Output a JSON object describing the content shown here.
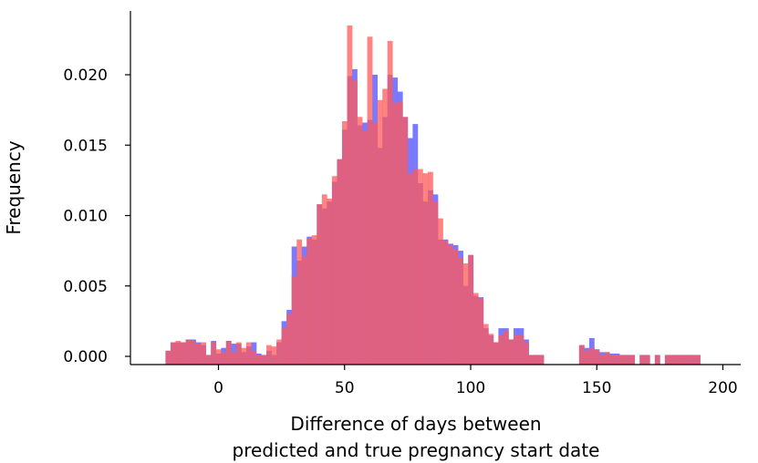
{
  "chart_data": {
    "type": "bar",
    "title": "",
    "xlabel_lines": [
      "Difference of days between",
      "predicted and true pregnancy start date"
    ],
    "ylabel": "Frequency",
    "xlim": [
      -35,
      205
    ],
    "ylim": [
      -0.0005,
      0.024
    ],
    "x_ticks": [
      0,
      50,
      100,
      150,
      200
    ],
    "y_ticks": [
      0.0,
      0.005,
      0.01,
      0.015,
      0.02
    ],
    "x_tick_labels": [
      "0",
      "50",
      "100",
      "150",
      "200"
    ],
    "y_tick_labels": [
      "0.000",
      "0.005",
      "0.010",
      "0.015",
      "0.020"
    ],
    "bin_width": 2,
    "grid": false,
    "series": [
      {
        "name": "series-blue",
        "color": "#6c6cff",
        "opacity": 0.9,
        "bins": [
          [
            -21,
            0.0004
          ],
          [
            -19,
            0.001
          ],
          [
            -17,
            0.001
          ],
          [
            -15,
            0.001
          ],
          [
            -13,
            0.0012
          ],
          [
            -11,
            0.0012
          ],
          [
            -9,
            0.001
          ],
          [
            -7,
            0.0008
          ],
          [
            -5,
            0.0001
          ],
          [
            -3,
            0.0011
          ],
          [
            -1,
            0.0002
          ],
          [
            1,
            0.0006
          ],
          [
            3,
            0.0011
          ],
          [
            5,
            0.0009
          ],
          [
            7,
            0.0009
          ],
          [
            9,
            0.0003
          ],
          [
            11,
            0.0007
          ],
          [
            13,
            0.001
          ],
          [
            15,
            0.0002
          ],
          [
            17,
            0.0001
          ],
          [
            19,
            0.0004
          ],
          [
            21,
            0.0001
          ],
          [
            23,
            0.001
          ],
          [
            25,
            0.0025
          ],
          [
            27,
            0.0033
          ],
          [
            29,
            0.0078
          ],
          [
            31,
            0.0068
          ],
          [
            33,
            0.0078
          ],
          [
            35,
            0.0085
          ],
          [
            37,
            0.0083
          ],
          [
            39,
            0.0108
          ],
          [
            41,
            0.0105
          ],
          [
            43,
            0.011
          ],
          [
            45,
            0.0124
          ],
          [
            47,
            0.014
          ],
          [
            49,
            0.0161
          ],
          [
            51,
            0.0199
          ],
          [
            53,
            0.0204
          ],
          [
            55,
            0.0164
          ],
          [
            57,
            0.0166
          ],
          [
            59,
            0.0168
          ],
          [
            61,
            0.02
          ],
          [
            63,
            0.0148
          ],
          [
            65,
            0.017
          ],
          [
            67,
            0.02
          ],
          [
            69,
            0.0198
          ],
          [
            71,
            0.0188
          ],
          [
            73,
            0.017
          ],
          [
            75,
            0.0155
          ],
          [
            77,
            0.0165
          ],
          [
            79,
            0.0123
          ],
          [
            81,
            0.011
          ],
          [
            83,
            0.0118
          ],
          [
            85,
            0.0115
          ],
          [
            87,
            0.0083
          ],
          [
            89,
            0.0083
          ],
          [
            91,
            0.008
          ],
          [
            93,
            0.0079
          ],
          [
            95,
            0.0075
          ],
          [
            97,
            0.005
          ],
          [
            99,
            0.0072
          ],
          [
            101,
            0.0043
          ],
          [
            103,
            0.0042
          ],
          [
            105,
            0.002
          ],
          [
            107,
            0.0015
          ],
          [
            109,
            0.001
          ],
          [
            111,
            0.002
          ],
          [
            113,
            0.002
          ],
          [
            115,
            0.0012
          ],
          [
            117,
            0.002
          ],
          [
            119,
            0.002
          ],
          [
            121,
            0.0012
          ],
          [
            123,
            0.0001
          ],
          [
            125,
            0.0001
          ],
          [
            127,
            0.0001
          ],
          [
            143,
            0.0008
          ],
          [
            145,
            0.0006
          ],
          [
            147,
            0.0013
          ],
          [
            149,
            0.0005
          ],
          [
            151,
            0.0003
          ],
          [
            153,
            0.0003
          ],
          [
            155,
            0.0002
          ],
          [
            157,
            0.0002
          ],
          [
            159,
            0.0001
          ],
          [
            161,
            0.0001
          ],
          [
            163,
            0.0001
          ],
          [
            167,
            0.0001
          ],
          [
            169,
            0.0001
          ],
          [
            173,
            0.0001
          ],
          [
            177,
            0.0001
          ],
          [
            179,
            0.0001
          ],
          [
            181,
            0.0001
          ],
          [
            183,
            0.0001
          ],
          [
            185,
            0.0001
          ],
          [
            187,
            0.0001
          ],
          [
            189,
            0.0001
          ]
        ]
      },
      {
        "name": "series-red",
        "color": "#ff5a5a",
        "opacity": 0.75,
        "bins": [
          [
            -21,
            0.0004
          ],
          [
            -19,
            0.001
          ],
          [
            -17,
            0.0011
          ],
          [
            -15,
            0.001
          ],
          [
            -13,
            0.0012
          ],
          [
            -11,
            0.0011
          ],
          [
            -9,
            0.0009
          ],
          [
            -7,
            0.001
          ],
          [
            -5,
            0.0001
          ],
          [
            -3,
            0.001
          ],
          [
            -1,
            0.0005
          ],
          [
            1,
            0.0003
          ],
          [
            3,
            0.0011
          ],
          [
            5,
            0.0003
          ],
          [
            7,
            0.001
          ],
          [
            9,
            0.0006
          ],
          [
            11,
            0.001
          ],
          [
            13,
            0.0004
          ],
          [
            15,
            0.0001
          ],
          [
            17,
            0.0001
          ],
          [
            19,
            0.0008
          ],
          [
            21,
            0.0007
          ],
          [
            23,
            0.0012
          ],
          [
            25,
            0.002
          ],
          [
            27,
            0.003
          ],
          [
            29,
            0.0057
          ],
          [
            31,
            0.0083
          ],
          [
            33,
            0.0071
          ],
          [
            35,
            0.0084
          ],
          [
            37,
            0.0086
          ],
          [
            39,
            0.0108
          ],
          [
            41,
            0.0115
          ],
          [
            43,
            0.0112
          ],
          [
            45,
            0.0128
          ],
          [
            47,
            0.014
          ],
          [
            49,
            0.0167
          ],
          [
            51,
            0.0235
          ],
          [
            53,
            0.0196
          ],
          [
            55,
            0.017
          ],
          [
            57,
            0.016
          ],
          [
            59,
            0.0227
          ],
          [
            61,
            0.0166
          ],
          [
            63,
            0.0182
          ],
          [
            65,
            0.019
          ],
          [
            67,
            0.0224
          ],
          [
            69,
            0.018
          ],
          [
            71,
            0.0181
          ],
          [
            73,
            0.017
          ],
          [
            75,
            0.013
          ],
          [
            77,
            0.0133
          ],
          [
            79,
            0.0133
          ],
          [
            81,
            0.013
          ],
          [
            83,
            0.0131
          ],
          [
            85,
            0.011
          ],
          [
            87,
            0.0098
          ],
          [
            89,
            0.0082
          ],
          [
            91,
            0.0079
          ],
          [
            93,
            0.0076
          ],
          [
            95,
            0.007
          ],
          [
            97,
            0.0066
          ],
          [
            99,
            0.0072
          ],
          [
            101,
            0.0045
          ],
          [
            103,
            0.0041
          ],
          [
            105,
            0.0023
          ],
          [
            107,
            0.0016
          ],
          [
            109,
            0.001
          ],
          [
            111,
            0.0015
          ],
          [
            113,
            0.0018
          ],
          [
            115,
            0.0012
          ],
          [
            117,
            0.0015
          ],
          [
            119,
            0.0015
          ],
          [
            121,
            0.001
          ],
          [
            123,
            0.0001
          ],
          [
            125,
            0.0001
          ],
          [
            127,
            0.0001
          ],
          [
            143,
            0.0008
          ],
          [
            145,
            0.0004
          ],
          [
            147,
            0.0006
          ],
          [
            149,
            0.0005
          ],
          [
            151,
            0.0001
          ],
          [
            153,
            0.0003
          ],
          [
            155,
            0.0001
          ],
          [
            157,
            0.0001
          ],
          [
            159,
            0.0001
          ],
          [
            161,
            0.0001
          ],
          [
            163,
            0.0001
          ],
          [
            167,
            0.0001
          ],
          [
            169,
            0.0001
          ],
          [
            173,
            0.0001
          ],
          [
            177,
            0.0001
          ],
          [
            179,
            0.0001
          ],
          [
            181,
            0.0001
          ],
          [
            183,
            0.0001
          ],
          [
            185,
            0.0001
          ],
          [
            187,
            0.0001
          ],
          [
            189,
            0.0001
          ]
        ]
      }
    ]
  }
}
